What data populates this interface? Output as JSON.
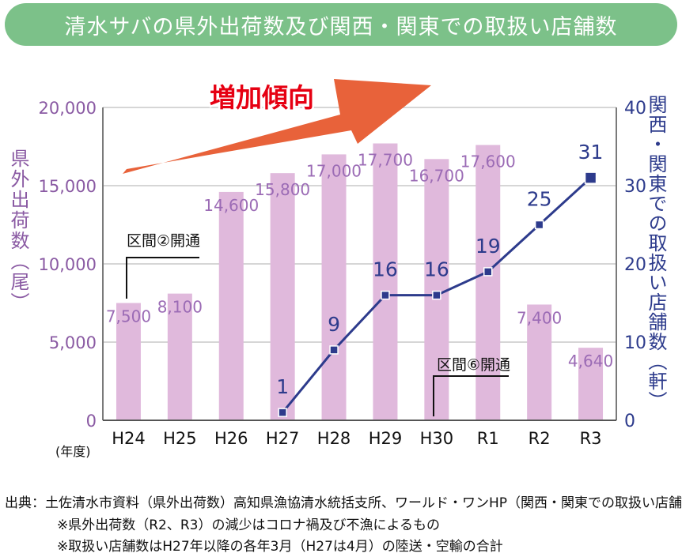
{
  "title": "清水サバの県外出荷数及び関西・関東での取扱い店舗数",
  "trend_label": "増加傾向",
  "left_axis_title": "県外出荷数（尾）",
  "right_axis_title": "関西・関東での取扱い店舗数（軒）",
  "x_axis_unit": "(年度)",
  "annotations": [
    {
      "text": "区間②開通",
      "category": "H24"
    },
    {
      "text": "区間⑥開通",
      "category": "H30"
    }
  ],
  "notes": {
    "source": "出典：土佐清水市資料（県外出荷数）高知県漁協清水統括支所、ワールド・ワンHP（関西・関東での取扱い店舗数",
    "note1": "※県外出荷数（R2、R3）の減少はコロナ禍及び不漁によるもの",
    "note2": "※取扱い店舗数はH27年以降の各年3月（H27は4月）の陸送・空輸の合計"
  },
  "colors": {
    "title_bg": "#7cc189",
    "bar": "#e0b9dc",
    "line": "#2d3b8c",
    "left_axis": "#8a5aa3",
    "trend_arrow": "#e8623a",
    "trend_text": "#e60012"
  },
  "chart_data": {
    "type": "bar",
    "categories": [
      "H24",
      "H25",
      "H26",
      "H27",
      "H28",
      "H29",
      "H30",
      "R1",
      "R2",
      "R3"
    ],
    "series": [
      {
        "name": "県外出荷数",
        "type": "bar",
        "axis": "left",
        "values": [
          7500,
          8100,
          14600,
          15800,
          17000,
          17700,
          16700,
          17600,
          7400,
          4640
        ],
        "labels": [
          "7,500",
          "8,100",
          "14,600",
          "15,800",
          "17,000",
          "17,700",
          "16,700",
          "17,600",
          "7,400",
          "4,640"
        ]
      },
      {
        "name": "関西・関東での取扱い店舗数",
        "type": "line",
        "axis": "right",
        "values": [
          null,
          null,
          null,
          1,
          9,
          16,
          16,
          19,
          25,
          31
        ]
      }
    ],
    "y_left": {
      "min": 0,
      "max": 20000,
      "ticks": [
        0,
        5000,
        10000,
        15000,
        20000
      ],
      "tick_labels": [
        "0",
        "5,000",
        "10,000",
        "15,000",
        "20,000"
      ]
    },
    "y_right": {
      "min": 0,
      "max": 40,
      "ticks": [
        0,
        10,
        20,
        30,
        40
      ],
      "tick_labels": [
        "0",
        "10",
        "20",
        "30",
        "40"
      ]
    },
    "grid": true
  }
}
